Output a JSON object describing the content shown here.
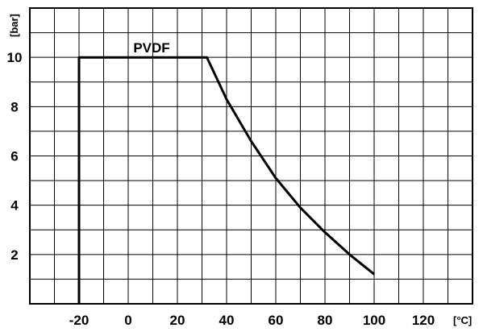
{
  "chart_data": {
    "type": "line",
    "title": "",
    "xlabel": "",
    "ylabel": "",
    "x_unit": "[°C]",
    "y_unit": "[bar]",
    "xlim": [
      -40,
      140
    ],
    "ylim": [
      0,
      12
    ],
    "x_ticks": [
      "-20",
      "0",
      "20",
      "40",
      "60",
      "80",
      "100",
      "120"
    ],
    "y_ticks": [
      "2",
      "4",
      "6",
      "8",
      "10"
    ],
    "grid": true,
    "series": [
      {
        "name": "PVDF",
        "x": [
          -20,
          -20,
          32,
          40,
          50,
          60,
          70,
          80,
          90,
          100
        ],
        "y": [
          0,
          10,
          10,
          8.3,
          6.6,
          5.1,
          3.9,
          2.9,
          2.0,
          1.2
        ]
      }
    ]
  }
}
